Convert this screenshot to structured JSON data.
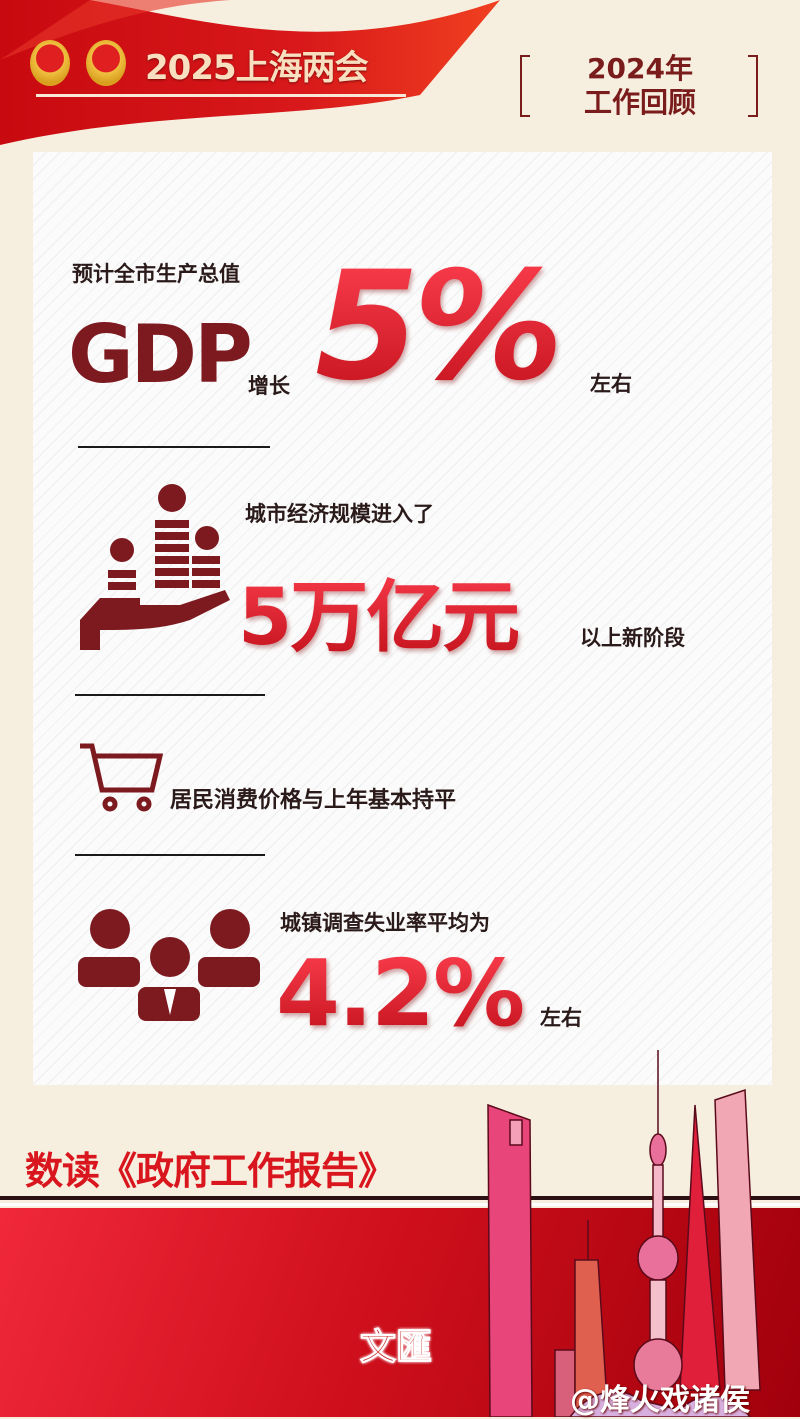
{
  "header": {
    "banner_title": "2025上海两会",
    "review_year": "2024年",
    "review_title": "工作回顾"
  },
  "gdp": {
    "label": "预计全市生产总值",
    "gdp": "GDP",
    "growth_word": "增长",
    "value": "5%",
    "suffix": "左右"
  },
  "economy": {
    "label": "城市经济规模进入了",
    "value": "5万亿元",
    "suffix": "以上新阶段"
  },
  "cpi": {
    "label": "居民消费价格与上年基本持平"
  },
  "unemployment": {
    "label": "城镇调查失业率平均为",
    "value": "4.2%",
    "suffix": "左右"
  },
  "footer": {
    "headline": "数读《政府工作报告》",
    "logo_text": "文匯",
    "watermark": "@烽火戏诸侯"
  },
  "colors": {
    "accent_red": "#e0202a",
    "dark_red": "#7c1a1f",
    "background": "#f6eedf"
  }
}
